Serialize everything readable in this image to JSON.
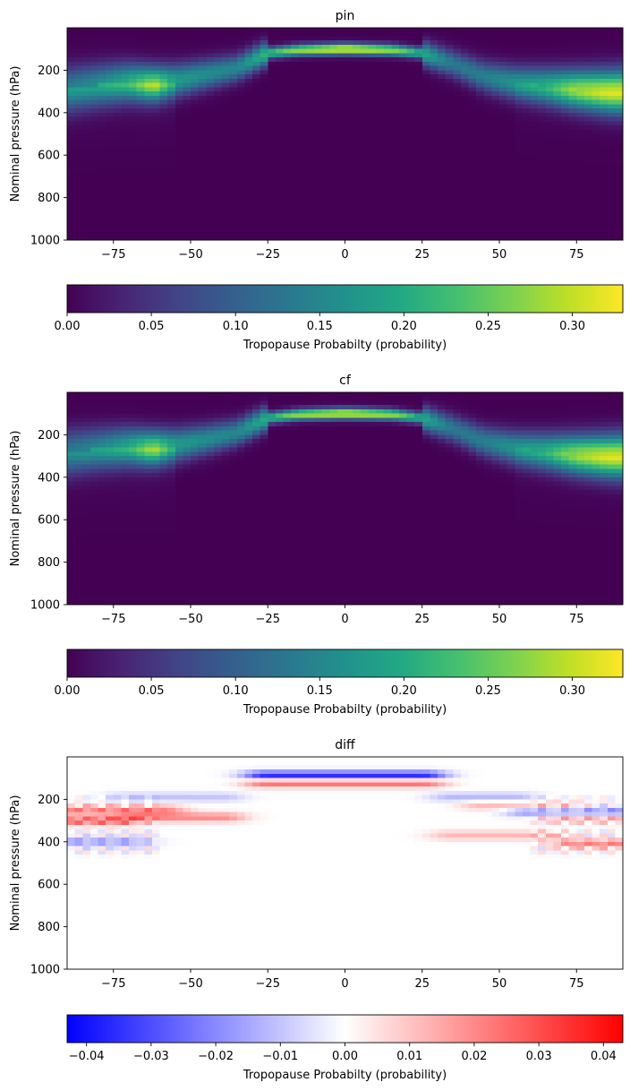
{
  "chart_data": [
    {
      "type": "heatmap",
      "title": "pin",
      "ylabel": "Nominal pressure (hPa)",
      "xlabel": "",
      "xlim": [
        -90,
        90
      ],
      "ylim": [
        1000,
        0
      ],
      "xticks": [
        -75,
        -50,
        -25,
        0,
        25,
        50,
        75
      ],
      "xtick_labels": [
        "−75",
        "−50",
        "−25",
        "0",
        "25",
        "50",
        "75"
      ],
      "yticks": [
        200,
        400,
        600,
        800,
        1000
      ],
      "ytick_labels": [
        "200",
        "400",
        "600",
        "800",
        "1000"
      ],
      "colormap": "viridis",
      "tropopause_profile": {
        "lat": [
          -90,
          -80,
          -70,
          -62,
          -55,
          -45,
          -35,
          -25,
          -15,
          0,
          15,
          25,
          35,
          45,
          55,
          65,
          75,
          85,
          90
        ],
        "pressure_hPa": [
          290,
          270,
          255,
          265,
          250,
          220,
          190,
          120,
          105,
          100,
          105,
          120,
          170,
          230,
          260,
          275,
          290,
          300,
          300
        ],
        "peak_probability": [
          0.14,
          0.16,
          0.2,
          0.27,
          0.18,
          0.16,
          0.15,
          0.22,
          0.28,
          0.33,
          0.28,
          0.2,
          0.13,
          0.14,
          0.17,
          0.2,
          0.27,
          0.3,
          0.3
        ]
      },
      "colorbar": {
        "label": "Tropopause Probabilty (probability)",
        "range": [
          0.0,
          0.33
        ],
        "ticks": [
          0.0,
          0.05,
          0.1,
          0.15,
          0.2,
          0.25,
          0.3
        ],
        "tick_labels": [
          "0.00",
          "0.05",
          "0.10",
          "0.15",
          "0.20",
          "0.25",
          "0.30"
        ]
      }
    },
    {
      "type": "heatmap",
      "title": "cf",
      "ylabel": "Nominal pressure (hPa)",
      "xlabel": "",
      "xlim": [
        -90,
        90
      ],
      "ylim": [
        1000,
        0
      ],
      "xticks": [
        -75,
        -50,
        -25,
        0,
        25,
        50,
        75
      ],
      "xtick_labels": [
        "−75",
        "−50",
        "−25",
        "0",
        "25",
        "50",
        "75"
      ],
      "yticks": [
        200,
        400,
        600,
        800,
        1000
      ],
      "ytick_labels": [
        "200",
        "400",
        "600",
        "800",
        "1000"
      ],
      "colormap": "viridis",
      "tropopause_profile": {
        "lat": [
          -90,
          -80,
          -70,
          -62,
          -55,
          -45,
          -35,
          -25,
          -15,
          0,
          15,
          25,
          35,
          45,
          55,
          65,
          75,
          85,
          90
        ],
        "pressure_hPa": [
          280,
          265,
          255,
          262,
          250,
          222,
          190,
          122,
          105,
          100,
          105,
          122,
          172,
          232,
          262,
          278,
          292,
          300,
          300
        ],
        "peak_probability": [
          0.13,
          0.15,
          0.19,
          0.26,
          0.18,
          0.16,
          0.15,
          0.21,
          0.28,
          0.32,
          0.28,
          0.2,
          0.13,
          0.14,
          0.17,
          0.2,
          0.27,
          0.3,
          0.3
        ]
      },
      "colorbar": {
        "label": "Tropopause Probabilty (probability)",
        "range": [
          0.0,
          0.33
        ],
        "ticks": [
          0.0,
          0.05,
          0.1,
          0.15,
          0.2,
          0.25,
          0.3
        ],
        "tick_labels": [
          "0.00",
          "0.05",
          "0.10",
          "0.15",
          "0.20",
          "0.25",
          "0.30"
        ]
      }
    },
    {
      "type": "heatmap",
      "title": "diff",
      "ylabel": "Nominal pressure (hPa)",
      "xlabel": "",
      "xlim": [
        -90,
        90
      ],
      "ylim": [
        1000,
        0
      ],
      "xticks": [
        -75,
        -50,
        -25,
        0,
        25,
        50,
        75
      ],
      "xtick_labels": [
        "−75",
        "−50",
        "−25",
        "0",
        "25",
        "50",
        "75"
      ],
      "yticks": [
        200,
        400,
        600,
        800,
        1000
      ],
      "ytick_labels": [
        "200",
        "400",
        "600",
        "800",
        "1000"
      ],
      "colormap": "bwr",
      "anomaly_features": [
        {
          "lat_range": [
            -25,
            25
          ],
          "pressure_hPa": 90,
          "value": -0.04
        },
        {
          "lat_range": [
            -25,
            25
          ],
          "pressure_hPa": 120,
          "value": 0.03
        },
        {
          "lat_range": [
            -90,
            -60
          ],
          "pressure_hPa": 250,
          "value": 0.02
        },
        {
          "lat_range": [
            -90,
            -75
          ],
          "pressure_hPa": 300,
          "value": 0.025
        },
        {
          "lat_range": [
            -65,
            -40
          ],
          "pressure_hPa": 285,
          "value": 0.02
        },
        {
          "lat_range": [
            -90,
            -70
          ],
          "pressure_hPa": 400,
          "value": -0.015
        },
        {
          "lat_range": [
            -70,
            -40
          ],
          "pressure_hPa": 190,
          "value": -0.01
        },
        {
          "lat_range": [
            35,
            55
          ],
          "pressure_hPa": 190,
          "value": -0.012
        },
        {
          "lat_range": [
            45,
            70
          ],
          "pressure_hPa": 230,
          "value": 0.012
        },
        {
          "lat_range": [
            60,
            90
          ],
          "pressure_hPa": 260,
          "value": -0.02
        },
        {
          "lat_range": [
            70,
            90
          ],
          "pressure_hPa": 290,
          "value": 0.015
        },
        {
          "lat_range": [
            35,
            65
          ],
          "pressure_hPa": 370,
          "value": 0.012
        },
        {
          "lat_range": [
            75,
            90
          ],
          "pressure_hPa": 410,
          "value": 0.02
        }
      ],
      "colorbar": {
        "label": "Tropopause Probabilty (probability)",
        "range": [
          -0.043,
          0.043
        ],
        "ticks": [
          -0.04,
          -0.03,
          -0.02,
          -0.01,
          0.0,
          0.01,
          0.02,
          0.03,
          0.04
        ],
        "tick_labels": [
          "−0.04",
          "−0.03",
          "−0.02",
          "−0.01",
          "0.00",
          "0.01",
          "0.02",
          "0.03",
          "0.04"
        ]
      }
    }
  ]
}
